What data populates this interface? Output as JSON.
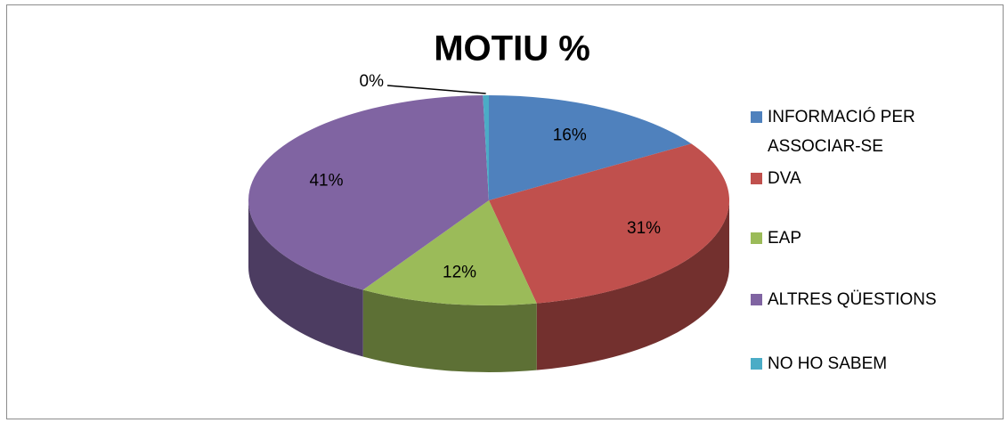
{
  "chart_data": {
    "type": "pie",
    "title": "MOTIU %",
    "categories": [
      "INFORMACIÓ PER ASSOCIAR-SE",
      "DVA",
      "EAP",
      "ALTRES QÜESTIONS",
      "NO HO SABEM"
    ],
    "values": [
      16,
      31,
      12,
      41,
      0.4
    ],
    "value_labels": [
      "16%",
      "31%",
      "12%",
      "41%",
      "0%"
    ],
    "colors": [
      "#4f81bd",
      "#c0504d",
      "#9bbb59",
      "#8064a2",
      "#4bacc6"
    ],
    "legend": "right"
  }
}
